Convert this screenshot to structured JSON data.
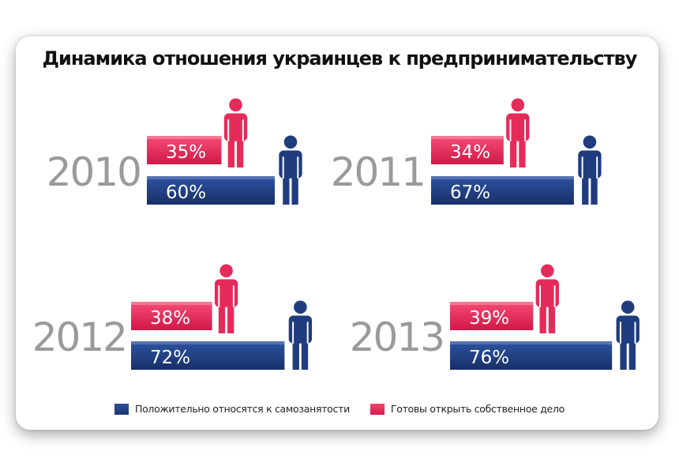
{
  "title": "Динамика отношения украинцев к предпринимательству",
  "colors": {
    "positive": "#1f3c7e",
    "ready": "#e52b5a",
    "year": "#9a9a9a"
  },
  "legend": {
    "positive": "Положительно относятся к самозанятости",
    "ready": "Готовы открыть собственное дело"
  },
  "chart_data": {
    "type": "bar",
    "categories": [
      "2010",
      "2011",
      "2012",
      "2013"
    ],
    "series": [
      {
        "name": "Положительно относятся к самозанятости",
        "values": [
          60,
          67,
          72,
          76
        ],
        "labels": [
          "60%",
          "67%",
          "72%",
          "76%"
        ]
      },
      {
        "name": "Готовы открыть собственное дело",
        "values": [
          35,
          34,
          38,
          39
        ],
        "labels": [
          "35%",
          "34%",
          "38%",
          "39%"
        ]
      }
    ],
    "legend_position": "bottom"
  }
}
